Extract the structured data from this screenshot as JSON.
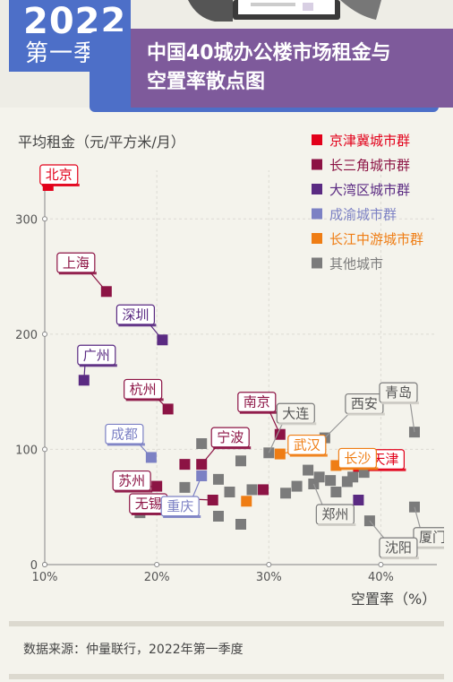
{
  "header": {
    "year": "2022",
    "quarter": "第一季度",
    "title_line1": "中国40城办公楼市场租金与",
    "title_line2": "空置率散点图"
  },
  "colors": {
    "京津冀城市群": "#e2001a",
    "长三角城市群": "#8c1344",
    "大湾区城市群": "#5a2a82",
    "成渝城市群": "#7c81c4",
    "长江中游城市群": "#ef7d14",
    "其他城市": "#7b7b7b"
  },
  "source": "数据来源：仲量联行，2022年第一季度",
  "chart_data": {
    "type": "scatter",
    "ylabel": "平均租金（元/平方米/月）",
    "xlabel": "空置率（%）",
    "xlim": [
      10,
      45
    ],
    "ylim": [
      0,
      350
    ],
    "xticks": [
      "10%",
      "20%",
      "30%",
      "40%"
    ],
    "yticks": [
      "0",
      "100",
      "200",
      "300"
    ],
    "legend_position": "top-right",
    "series": [
      {
        "name": "京津冀城市群",
        "points": [
          {
            "label": "北京",
            "x": 10.3,
            "y": 329
          },
          {
            "label": "天津",
            "x": 38.0,
            "y": 85
          }
        ]
      },
      {
        "name": "长三角城市群",
        "points": [
          {
            "label": "上海",
            "x": 15.5,
            "y": 237
          },
          {
            "label": "杭州",
            "x": 21.0,
            "y": 135
          },
          {
            "label": "南京",
            "x": 31.0,
            "y": 113
          },
          {
            "label": "宁波",
            "x": 24.0,
            "y": 87
          },
          {
            "label": "苏州",
            "x": 20.0,
            "y": 68
          },
          {
            "label": "无锡",
            "x": 25.0,
            "y": 56
          },
          {
            "label": "",
            "x": 22.5,
            "y": 87
          },
          {
            "label": "",
            "x": 29.5,
            "y": 65
          }
        ]
      },
      {
        "name": "大湾区城市群",
        "points": [
          {
            "label": "深圳",
            "x": 20.5,
            "y": 195
          },
          {
            "label": "广州",
            "x": 13.5,
            "y": 160
          },
          {
            "label": "",
            "x": 38.0,
            "y": 56
          }
        ]
      },
      {
        "name": "成渝城市群",
        "points": [
          {
            "label": "成都",
            "x": 19.5,
            "y": 93
          },
          {
            "label": "重庆",
            "x": 24.0,
            "y": 77
          }
        ]
      },
      {
        "name": "长江中游城市群",
        "points": [
          {
            "label": "武汉",
            "x": 31.0,
            "y": 96
          },
          {
            "label": "长沙",
            "x": 36.0,
            "y": 86
          },
          {
            "label": "",
            "x": 28.0,
            "y": 55
          }
        ]
      },
      {
        "name": "其他城市",
        "points": [
          {
            "label": "大连",
            "x": 30.0,
            "y": 97
          },
          {
            "label": "西安",
            "x": 35.0,
            "y": 110
          },
          {
            "label": "青岛",
            "x": 43.0,
            "y": 115
          },
          {
            "label": "厦门",
            "x": 43.0,
            "y": 50
          },
          {
            "label": "沈阳",
            "x": 39.0,
            "y": 38
          },
          {
            "label": "郑州",
            "x": 34.0,
            "y": 70
          },
          {
            "label": "",
            "x": 18.5,
            "y": 45
          },
          {
            "label": "",
            "x": 22.5,
            "y": 67
          },
          {
            "label": "",
            "x": 24.0,
            "y": 105
          },
          {
            "label": "",
            "x": 25.5,
            "y": 74
          },
          {
            "label": "",
            "x": 26.5,
            "y": 63
          },
          {
            "label": "",
            "x": 25.5,
            "y": 42
          },
          {
            "label": "",
            "x": 27.5,
            "y": 35
          },
          {
            "label": "",
            "x": 27.5,
            "y": 90
          },
          {
            "label": "",
            "x": 28.5,
            "y": 65
          },
          {
            "label": "",
            "x": 31.5,
            "y": 62
          },
          {
            "label": "",
            "x": 32.5,
            "y": 68
          },
          {
            "label": "",
            "x": 33.5,
            "y": 82
          },
          {
            "label": "",
            "x": 34.5,
            "y": 76
          },
          {
            "label": "",
            "x": 35.5,
            "y": 73
          },
          {
            "label": "",
            "x": 37.0,
            "y": 72
          },
          {
            "label": "",
            "x": 37.5,
            "y": 76
          },
          {
            "label": "",
            "x": 38.5,
            "y": 80
          },
          {
            "label": "",
            "x": 36.0,
            "y": 63
          }
        ]
      }
    ]
  }
}
